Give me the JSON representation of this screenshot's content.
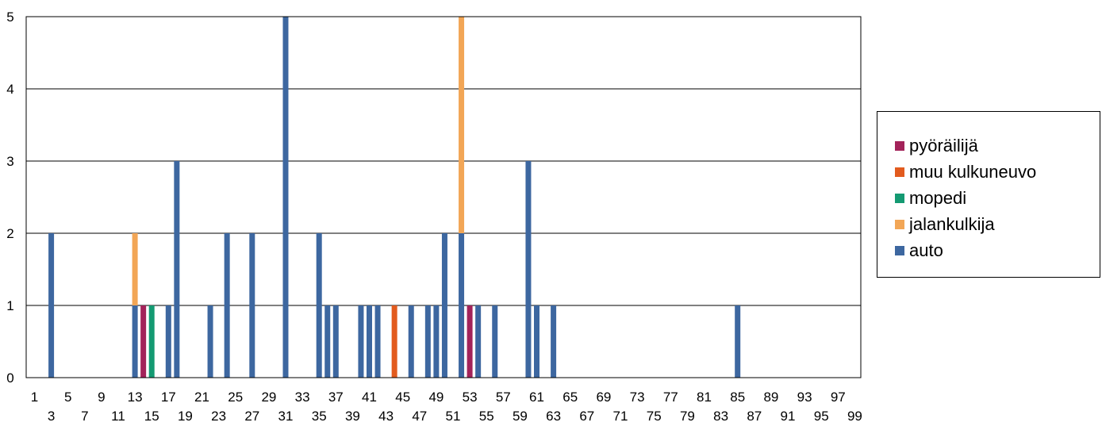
{
  "chart_data": {
    "type": "bar",
    "stacked": true,
    "x_min": 1,
    "x_max": 99,
    "ylim": [
      0,
      5
    ],
    "y_ticks": [
      0,
      1,
      2,
      3,
      4,
      5
    ],
    "x_ticks_top": [
      1,
      5,
      9,
      13,
      17,
      21,
      25,
      29,
      33,
      37,
      41,
      45,
      49,
      53,
      57,
      61,
      65,
      69,
      73,
      77,
      81,
      85,
      89,
      93,
      97
    ],
    "x_ticks_bottom": [
      3,
      7,
      11,
      15,
      19,
      23,
      27,
      31,
      35,
      39,
      43,
      47,
      51,
      55,
      59,
      63,
      67,
      71,
      75,
      79,
      83,
      87,
      91,
      95,
      99
    ],
    "grid": true,
    "legend_position": "right",
    "series": [
      {
        "name": "auto",
        "color": "#3D67A0",
        "points": [
          [
            3,
            2
          ],
          [
            13,
            1
          ],
          [
            17,
            1
          ],
          [
            18,
            3
          ],
          [
            22,
            1
          ],
          [
            24,
            2
          ],
          [
            27,
            2
          ],
          [
            31,
            5
          ],
          [
            35,
            2
          ],
          [
            36,
            1
          ],
          [
            37,
            1
          ],
          [
            40,
            1
          ],
          [
            41,
            1
          ],
          [
            42,
            1
          ],
          [
            46,
            1
          ],
          [
            48,
            1
          ],
          [
            49,
            1
          ],
          [
            50,
            2
          ],
          [
            52,
            2
          ],
          [
            54,
            1
          ],
          [
            56,
            1
          ],
          [
            60,
            3
          ],
          [
            61,
            1
          ],
          [
            63,
            1
          ],
          [
            85,
            1
          ]
        ]
      },
      {
        "name": "jalankulkija",
        "color": "#F2A656",
        "points": [
          [
            13,
            1
          ],
          [
            52,
            3
          ]
        ]
      },
      {
        "name": "mopedi",
        "color": "#149A72",
        "points": [
          [
            15,
            1
          ]
        ]
      },
      {
        "name": "muu kulkuneuvo",
        "color": "#E25B1E",
        "points": [
          [
            44,
            1
          ]
        ]
      },
      {
        "name": "pyöräilijä",
        "color": "#A3235A",
        "points": [
          [
            14,
            1
          ],
          [
            53,
            1
          ]
        ]
      }
    ],
    "legend_order": [
      "pyöräilijä",
      "muu kulkuneuvo",
      "mopedi",
      "jalankulkija",
      "auto"
    ]
  }
}
